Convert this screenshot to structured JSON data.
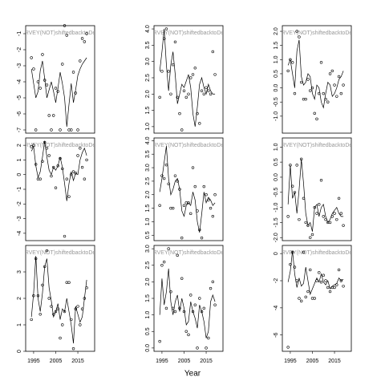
{
  "xlabel": "Year",
  "chart_data": [
    {
      "type": "scatter",
      "title": "RVEY(NOT)shiftedbacktoDe",
      "x": [
        1994,
        1995,
        1996,
        1997,
        1998,
        1999,
        2000,
        2001,
        2002,
        2003,
        2004,
        2005,
        2006,
        2007,
        2008,
        2009,
        2010,
        2011,
        2012,
        2013,
        2014,
        2015,
        2016,
        2017,
        2018,
        2019
      ],
      "xlim": [
        1991.4,
        2022.6
      ],
      "values": [
        -2.5,
        -3.2,
        -7,
        -4,
        -4.4,
        -2.3,
        -3.9,
        -4.2,
        -6.1,
        -7,
        -6.1,
        -4.4,
        -4.6,
        -7,
        -2.9,
        -0.5,
        -1.1,
        -7,
        -7,
        -3.4,
        -4.7,
        -7,
        -2.7,
        -1.3,
        -1.5,
        -1
      ],
      "line_values": [
        -3.2,
        -4.1,
        -5,
        -4.6,
        -3.3,
        -2.7,
        -3.8,
        -5,
        -4.5,
        -4,
        -4.6,
        -5.3,
        -4.4,
        -3.4,
        -4.1,
        -5,
        -6.8,
        -5.4,
        -4.1,
        -5.3,
        -4.5,
        -3.6,
        -3.2,
        -2.9,
        -2.7,
        -2.5
      ],
      "ylim": [
        -7.2,
        -0.5
      ],
      "yticks": [
        -7,
        -6,
        -5,
        -4,
        -3,
        -2,
        -1
      ]
    },
    {
      "type": "scatter",
      "title": "RVEY(NOT)shiftedbacktoDe",
      "x": [
        1994,
        1995,
        1996,
        1997,
        1998,
        1999,
        2000,
        2001,
        2002,
        2003,
        2004,
        2005,
        2006,
        2007,
        2008,
        2009,
        2010,
        2011,
        2012,
        2013,
        2014,
        2015,
        2016,
        2017,
        2018,
        2019
      ],
      "xlim": [
        1991.4,
        2022.6
      ],
      "values": [
        1.9,
        2.7,
        3.7,
        4.0,
        2.7,
        2.0,
        2.9,
        3.6,
        1.9,
        1.4,
        0.9,
        2.1,
        1.9,
        2.0,
        2.5,
        2.6,
        2.8,
        1.4,
        1.1,
        2.1,
        2.0,
        2.2,
        2.1,
        2.0,
        3.3,
        2.6
      ],
      "line_values": [
        2.7,
        3.3,
        4.0,
        2.9,
        2.1,
        2.9,
        3.3,
        2.6,
        1.7,
        2.0,
        2.3,
        2.2,
        2.4,
        2.6,
        2.2,
        1.4,
        1.0,
        1.6,
        2.3,
        2.5,
        2.2,
        2.0,
        2.3,
        2.1,
        2.0,
        2.0
      ],
      "ylim": [
        0.8,
        4.1
      ],
      "yticks": [
        {
          "value": 1,
          "label": "1.0"
        },
        1.5,
        {
          "value": 2,
          "label": "2.0"
        },
        2.5,
        {
          "value": 3,
          "label": "3.0"
        },
        3.5,
        {
          "value": 4,
          "label": "4.0"
        }
      ]
    },
    {
      "type": "scatter",
      "title": "RVEY(NOT)shiftedbacktoDe",
      "x": [
        1994,
        1995,
        1996,
        1997,
        1998,
        1999,
        2000,
        2001,
        2002,
        2003,
        2004,
        2005,
        2006,
        2007,
        2008,
        2009,
        2010,
        2011,
        2012,
        2013,
        2014,
        2015,
        2016,
        2017,
        2018,
        2019
      ],
      "xlim": [
        1991.4,
        2022.6
      ],
      "values": [
        0.6,
        1.0,
        0.9,
        -0.2,
        2.0,
        1.8,
        0.2,
        -0.4,
        -0.4,
        0.3,
        -0.1,
        0.0,
        -0.9,
        -1.1,
        -0.2,
        0.9,
        -0.2,
        -0.4,
        -0.5,
        0.5,
        0.6,
        0.1,
        -0.3,
        0.4,
        -0.2,
        0.1
      ],
      "line_values": [
        0.8,
        1.0,
        0.5,
        0.0,
        1.3,
        1.7,
        0.4,
        0.1,
        0.2,
        0.5,
        0.4,
        -0.2,
        -0.4,
        0.1,
        0.0,
        -0.5,
        -0.7,
        -0.2,
        0.2,
        0.1,
        -0.3,
        -0.2,
        0.0,
        0.3,
        0.4,
        0.6
      ],
      "ylim": [
        -1.6,
        2.2
      ],
      "yticks": [
        {
          "value": -1,
          "label": "-1.0"
        },
        -0.5,
        {
          "value": 0,
          "label": "0.0"
        },
        0.5,
        {
          "value": 1,
          "label": "1.0"
        },
        1.5,
        {
          "value": 2,
          "label": "2.0"
        }
      ]
    },
    {
      "type": "scatter",
      "title": "RVEY(NOT)shiftedbacktoDe",
      "x": [
        1994,
        1995,
        1996,
        1997,
        1998,
        1999,
        2000,
        2001,
        2002,
        2003,
        2004,
        2005,
        2006,
        2007,
        2008,
        2009,
        2010,
        2011,
        2012,
        2013,
        2014,
        2015,
        2016,
        2017,
        2018,
        2019
      ],
      "xlim": [
        1991.4,
        2022.6
      ],
      "values": [
        1.9,
        2.0,
        0.7,
        -0.3,
        -0.3,
        0.9,
        2.2,
        1.8,
        1.3,
        -0.1,
        0.5,
        -0.9,
        0.6,
        1.1,
        0.4,
        -4.2,
        -0.3,
        -1.5,
        0.0,
        0.2,
        0.1,
        1.3,
        1.8,
        0.5,
        -0.3,
        1.0
      ],
      "line_values": [
        1.6,
        1.9,
        0.6,
        -0.2,
        0.2,
        1.2,
        2.3,
        1.2,
        0.3,
        0.0,
        0.5,
        0.3,
        0.6,
        1.2,
        0.5,
        -0.6,
        -1.8,
        -0.6,
        0.2,
        -0.4,
        0.1,
        0.0,
        1.0,
        1.5,
        1.8,
        1.3
      ],
      "ylim": [
        -4.5,
        2.5
      ],
      "yticks": [
        -4,
        -3,
        -2,
        -1,
        0,
        1,
        2
      ]
    },
    {
      "type": "scatter",
      "title": "RVEY(NOT)shiftedbacktoDe",
      "x": [
        1994,
        1995,
        1996,
        1997,
        1998,
        1999,
        2000,
        2001,
        2002,
        2003,
        2004,
        2005,
        2006,
        2007,
        2008,
        2009,
        2010,
        2011,
        2012,
        2013,
        2014,
        2015,
        2016,
        2017,
        2018,
        2019
      ],
      "xlim": [
        1991.4,
        2022.6
      ],
      "values": [
        1.6,
        2.7,
        2.6,
        3.1,
        2.4,
        1.5,
        1.5,
        2.7,
        2.5,
        2.2,
        0.4,
        1.6,
        1.7,
        1.7,
        1.3,
        3.0,
        2.3,
        1.4,
        0.7,
        0.4,
        2.3,
        2.0,
        1.8,
        1.5,
        1.2,
        2.0
      ],
      "line_values": [
        2.1,
        2.6,
        3.2,
        3.8,
        2.6,
        2.0,
        2.2,
        2.5,
        2.6,
        2.2,
        1.4,
        1.2,
        1.6,
        1.7,
        1.6,
        2.1,
        1.8,
        1.0,
        0.6,
        1.3,
        2.1,
        1.7,
        1.9,
        1.8,
        1.6,
        1.7
      ],
      "ylim": [
        0.3,
        4.1
      ],
      "yticks": [
        0.5,
        {
          "value": 1,
          "label": "1.0"
        },
        1.5,
        {
          "value": 2,
          "label": "2.0"
        },
        2.5,
        {
          "value": 3,
          "label": "3.0"
        },
        3.5,
        {
          "value": 4,
          "label": "4.0"
        }
      ]
    },
    {
      "type": "scatter",
      "title": "RVEY(NOT)shiftedbacktoDe",
      "x": [
        1994,
        1995,
        1996,
        1997,
        1998,
        1999,
        2000,
        2001,
        2002,
        2003,
        2004,
        2005,
        2006,
        2007,
        2008,
        2009,
        2010,
        2011,
        2012,
        2013,
        2014,
        2015,
        2016,
        2017,
        2018,
        2019
      ],
      "xlim": [
        1991.4,
        2022.6
      ],
      "values": [
        -1.3,
        0.4,
        -0.3,
        -0.5,
        0.4,
        -1.4,
        0.6,
        -0.7,
        -1.5,
        -1.6,
        -2.0,
        -1.9,
        -1.0,
        -1.2,
        -0.9,
        -0.1,
        -1.3,
        -1.4,
        -1.5,
        -1.5,
        -1.3,
        -1.2,
        -1.4,
        -0.7,
        -1.2,
        -1.6
      ],
      "line_values": [
        -0.9,
        0.4,
        -0.7,
        -0.5,
        -1.2,
        -0.4,
        0.6,
        -0.2,
        -1.2,
        -1.6,
        -1.5,
        -1.8,
        -1.0,
        -0.9,
        -1.3,
        -1.0,
        -0.9,
        -1.3,
        -1.5,
        -1.4,
        -1.2,
        -1.1,
        -1.0,
        -1.2,
        -1.3,
        -1.3
      ],
      "ylim": [
        -2.1,
        1.3
      ],
      "yticks": [
        {
          "value": -2,
          "label": "-2.0"
        },
        -1.5,
        {
          "value": -1,
          "label": "-1.0"
        },
        -0.5,
        {
          "value": 0,
          "label": "0.0"
        },
        0.5,
        {
          "value": 1,
          "label": "1.0"
        }
      ]
    },
    {
      "type": "scatter",
      "title": "RVEY(NOT)shiftedbacktoDe",
      "x": [
        1994,
        1995,
        1996,
        1997,
        1998,
        1999,
        2000,
        2001,
        2002,
        2003,
        2004,
        2005,
        2006,
        2007,
        2008,
        2009,
        2010,
        2011,
        2012,
        2013,
        2014,
        2015,
        2016,
        2017,
        2018,
        2019
      ],
      "xlim": [
        1991.4,
        2022.6
      ],
      "xticks": [
        1995,
        2005,
        2015
      ],
      "values": [
        1.2,
        2.1,
        3.5,
        2.1,
        1.4,
        2.5,
        3.2,
        3.8,
        2.0,
        1.7,
        1.4,
        1.5,
        1.6,
        0.5,
        1.0,
        1.5,
        2.6,
        2.6,
        1.2,
        0.1,
        1.6,
        1.7,
        1.0,
        1.6,
        2.0,
        2.4
      ],
      "line_values": [
        1.3,
        2.2,
        3.6,
        2.0,
        1.5,
        2.2,
        3.2,
        3.5,
        2.4,
        1.9,
        1.3,
        1.5,
        1.8,
        1.2,
        1.6,
        1.5,
        2.0,
        1.5,
        1.0,
        0.3,
        1.7,
        1.4,
        1.1,
        1.3,
        2.0,
        2.7
      ],
      "ylim": [
        0,
        4
      ],
      "yticks": [
        0,
        1,
        2,
        3
      ]
    },
    {
      "type": "scatter",
      "title": "RVEY(NOT)shiftedbacktoDe",
      "x": [
        1994,
        1995,
        1996,
        1997,
        1998,
        1999,
        2000,
        2001,
        2002,
        2003,
        2004,
        2005,
        2006,
        2007,
        2008,
        2009,
        2010,
        2011,
        2012,
        2013,
        2014,
        2015,
        2016,
        2017,
        2018,
        2019
      ],
      "xlim": [
        1991.4,
        2022.6
      ],
      "xticks": [
        1995,
        2005,
        2015
      ],
      "values": [
        0.2,
        2.5,
        2.6,
        1.2,
        3.0,
        1.7,
        1.2,
        1.1,
        2.8,
        1.2,
        2.1,
        1.1,
        0.5,
        0.4,
        1.6,
        1.1,
        1.3,
        0.0,
        1.5,
        1.1,
        1.2,
        0.0,
        0.3,
        1.8,
        2.0,
        1.3
      ],
      "line_values": [
        1.0,
        2.1,
        1.3,
        1.7,
        2.4,
        1.4,
        1.0,
        1.4,
        1.6,
        1.1,
        1.5,
        1.2,
        0.7,
        0.8,
        1.4,
        1.1,
        0.9,
        0.6,
        1.3,
        1.1,
        0.8,
        0.3,
        0.5,
        1.4,
        1.6,
        1.4
      ],
      "ylim": [
        -0.1,
        3.1
      ],
      "yticks": [
        {
          "value": 0,
          "label": "0.0"
        },
        0.5,
        {
          "value": 1,
          "label": "1.0"
        },
        1.5,
        {
          "value": 2,
          "label": "2.0"
        },
        2.5,
        {
          "value": 3,
          "label": "3.0"
        }
      ]
    },
    {
      "type": "scatter",
      "title": "RVEY(NOT)shiftedbacktoDe",
      "x": [
        1994,
        1995,
        1996,
        1997,
        1998,
        1999,
        2000,
        2001,
        2002,
        2003,
        2004,
        2005,
        2006,
        2007,
        2008,
        2009,
        2010,
        2011,
        2012,
        2013,
        2014,
        2015,
        2016,
        2017,
        2018,
        2019
      ],
      "xlim": [
        1991.4,
        2022.6
      ],
      "xticks": [
        1995,
        2005,
        2015
      ],
      "values": [
        -6.9,
        -0.8,
        0.1,
        -1.0,
        -2.0,
        -3.3,
        -3.5,
        0.1,
        -3.2,
        -2.8,
        -1.2,
        -3.3,
        -3.3,
        -2.0,
        -1.4,
        -2.1,
        -1.6,
        -2.0,
        -2.5,
        -2.8,
        -2.5,
        -2.5,
        -2.3,
        -1.2,
        -2.0,
        -2.4
      ],
      "line_values": [
        -2.1,
        -1.3,
        0.2,
        -1.5,
        -2.5,
        -1.8,
        -2.4,
        -2.2,
        -1.0,
        -2.0,
        -3.0,
        -2.6,
        -2.2,
        -1.8,
        -2.1,
        -1.5,
        -2.1,
        -2.3,
        -2.0,
        -2.6,
        -2.4,
        -2.3,
        -2.2,
        -1.8,
        -2.0,
        -1.9
      ],
      "ylim": [
        -7.2,
        0.6
      ],
      "yticks": [
        -6,
        -4,
        -2,
        0
      ]
    }
  ]
}
